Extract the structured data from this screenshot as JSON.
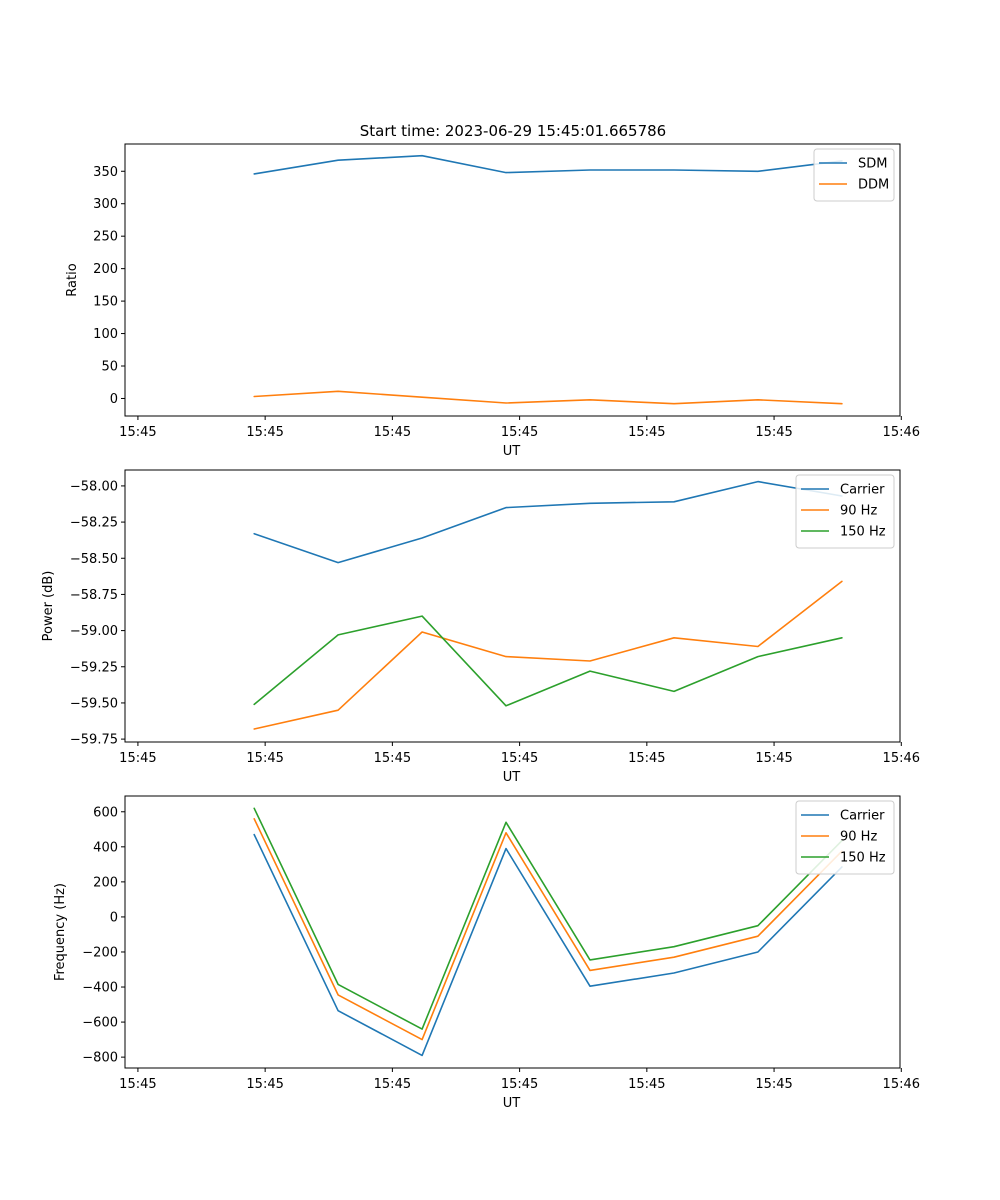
{
  "title": "Start time: 2023-06-29 15:45:01.665786",
  "colors": {
    "blue": "#1f77b4",
    "orange": "#ff7f0e",
    "green": "#2ca02c"
  },
  "chart_data": [
    {
      "type": "line",
      "xlabel": "UT",
      "ylabel": "Ratio",
      "x_tick_labels": [
        "15:45",
        "15:45",
        "15:45",
        "15:45",
        "15:45",
        "15:45",
        "15:46"
      ],
      "xlim": [
        -0.5,
        5.5
      ],
      "ylim": [
        -27,
        392
      ],
      "y_ticks": [
        0,
        50,
        100,
        150,
        200,
        250,
        300,
        350
      ],
      "y_tick_labels": [
        "0",
        "50",
        "100",
        "150",
        "200",
        "250",
        "300",
        "350"
      ],
      "x": [
        0.5,
        1.15,
        1.8,
        2.45,
        3.1,
        3.75,
        4.4,
        5.05
      ],
      "legend_position": "upper right",
      "series": [
        {
          "name": "SDM",
          "color": "#1f77b4",
          "values": [
            346,
            367,
            374,
            348,
            352,
            352,
            350,
            366
          ]
        },
        {
          "name": "DDM",
          "color": "#ff7f0e",
          "values": [
            3,
            11,
            2,
            -7,
            -2,
            -8,
            -2,
            -8
          ]
        }
      ]
    },
    {
      "type": "line",
      "xlabel": "UT",
      "ylabel": "Power (dB)",
      "x_tick_labels": [
        "15:45",
        "15:45",
        "15:45",
        "15:45",
        "15:45",
        "15:45",
        "15:46"
      ],
      "xlim": [
        -0.5,
        5.5
      ],
      "ylim": [
        -59.77,
        -57.89
      ],
      "y_ticks": [
        -59.75,
        -59.5,
        -59.25,
        -59.0,
        -58.75,
        -58.5,
        -58.25,
        -58.0
      ],
      "y_tick_labels": [
        "−59.75",
        "−59.50",
        "−59.25",
        "−59.00",
        "−58.75",
        "−58.50",
        "−58.25",
        "−58.00"
      ],
      "x": [
        0.5,
        1.15,
        1.8,
        2.45,
        3.1,
        3.75,
        4.4,
        5.05
      ],
      "legend_position": "upper right",
      "series": [
        {
          "name": "Carrier",
          "color": "#1f77b4",
          "values": [
            -58.33,
            -58.53,
            -58.36,
            -58.15,
            -58.12,
            -58.11,
            -57.97,
            -58.07
          ]
        },
        {
          "name": "90 Hz",
          "color": "#ff7f0e",
          "values": [
            -59.68,
            -59.55,
            -59.01,
            -59.18,
            -59.21,
            -59.05,
            -59.11,
            -58.66
          ]
        },
        {
          "name": "150 Hz",
          "color": "#2ca02c",
          "values": [
            -59.51,
            -59.03,
            -58.9,
            -59.52,
            -59.28,
            -59.42,
            -59.18,
            -59.05
          ]
        }
      ]
    },
    {
      "type": "line",
      "xlabel": "UT",
      "ylabel": "Frequency (Hz)",
      "x_tick_labels": [
        "15:45",
        "15:45",
        "15:45",
        "15:45",
        "15:45",
        "15:45",
        "15:46"
      ],
      "xlim": [
        -0.5,
        5.5
      ],
      "ylim": [
        -862,
        690
      ],
      "y_ticks": [
        -800,
        -600,
        -400,
        -200,
        0,
        200,
        400,
        600
      ],
      "y_tick_labels": [
        "−800",
        "−600",
        "−400",
        "−200",
        "0",
        "200",
        "400",
        "600"
      ],
      "x": [
        0.5,
        1.15,
        1.8,
        2.45,
        3.1,
        3.75,
        4.4,
        5.05
      ],
      "legend_position": "upper right",
      "series": [
        {
          "name": "Carrier",
          "color": "#1f77b4",
          "values": [
            470,
            -535,
            -790,
            390,
            -395,
            -320,
            -200,
            285
          ]
        },
        {
          "name": "90 Hz",
          "color": "#ff7f0e",
          "values": [
            560,
            -445,
            -700,
            480,
            -305,
            -230,
            -110,
            375
          ]
        },
        {
          "name": "150 Hz",
          "color": "#2ca02c",
          "values": [
            620,
            -385,
            -640,
            540,
            -245,
            -170,
            -50,
            435
          ]
        }
      ]
    }
  ]
}
